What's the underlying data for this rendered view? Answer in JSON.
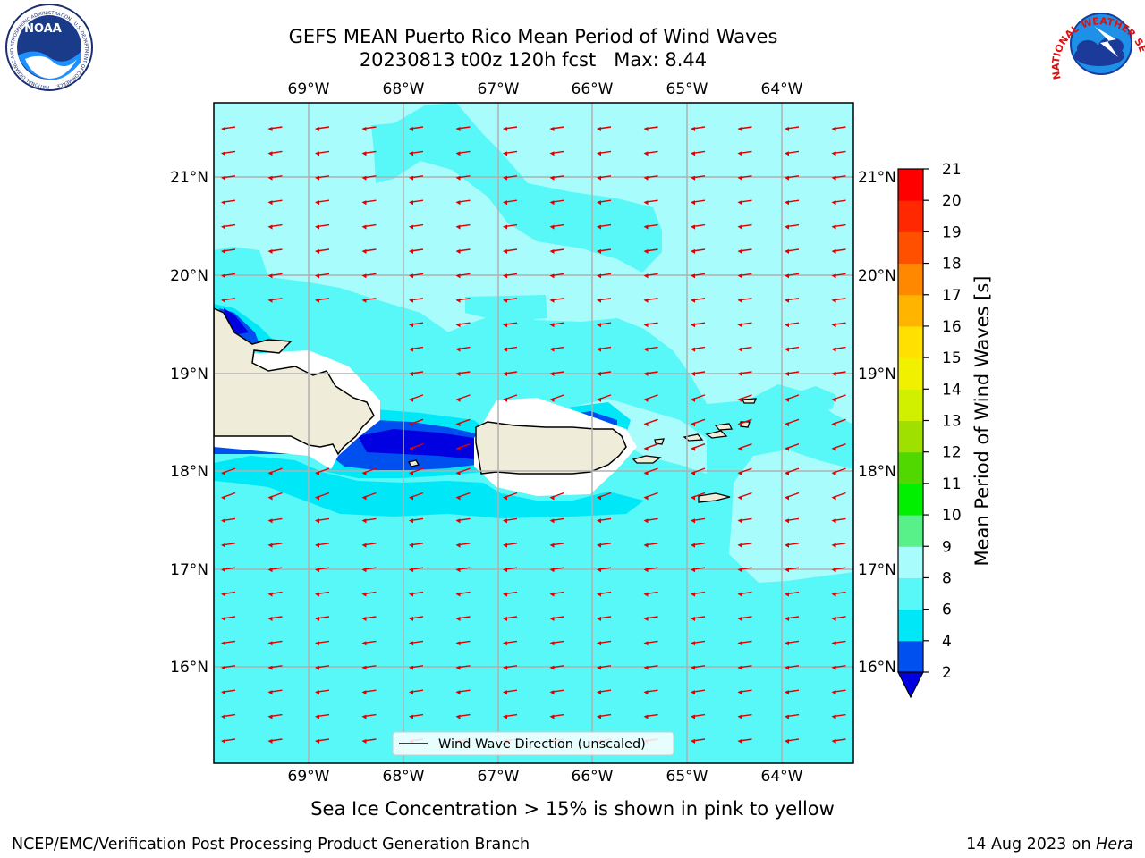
{
  "title_line1": "GEFS MEAN Puerto Rico Mean Period of Wind Waves",
  "title_line2": "20230813 t00z 120h fcst   Max: 8.44",
  "lon_labels": [
    "69°W",
    "68°W",
    "67°W",
    "66°W",
    "65°W",
    "64°W"
  ],
  "lat_labels": [
    "21°N",
    "20°N",
    "19°N",
    "18°N",
    "17°N",
    "16°N"
  ],
  "legend_label": "Wind Wave Direction (unscaled)",
  "colorbar": {
    "label": "Mean Period of Wind Waves [s]",
    "ticks": [
      "2",
      "4",
      "6",
      "8",
      "9",
      "10",
      "11",
      "12",
      "13",
      "14",
      "15",
      "16",
      "17",
      "18",
      "19",
      "20",
      "21"
    ],
    "colors": [
      "#0050f0",
      "#00e8f8",
      "#58f8f8",
      "#a8fcfc",
      "#58f088",
      "#00f000",
      "#50d800",
      "#a0e000",
      "#d0f000",
      "#f0f000",
      "#ffe000",
      "#ffb400",
      "#ff8800",
      "#ff5000",
      "#ff2800",
      "#ff0000"
    ],
    "under_color": "#0000e0"
  },
  "caption": "Sea Ice Concentration > 15% is shown in pink to yellow",
  "footer_left": "NCEP/EMC/Verification Post Processing Product Generation Branch",
  "footer_right_prefix": "14 Aug 2023 on ",
  "footer_right_host": "Hera",
  "logo_left_text": "NOAA",
  "logo_left_ring": "NATIONAL OCEANIC AND ATMOSPHERIC ADMINISTRATION · U.S. DEPARTMENT OF COMMERCE",
  "logo_right_ring": "NATIONAL WEATHER SERVICE",
  "colors": {
    "land": "#efedda",
    "period_4_6": "#00e8f8",
    "period_6_8": "#58f8f8",
    "period_8_9": "#a8fcfc",
    "arrow": "#e00000"
  }
}
